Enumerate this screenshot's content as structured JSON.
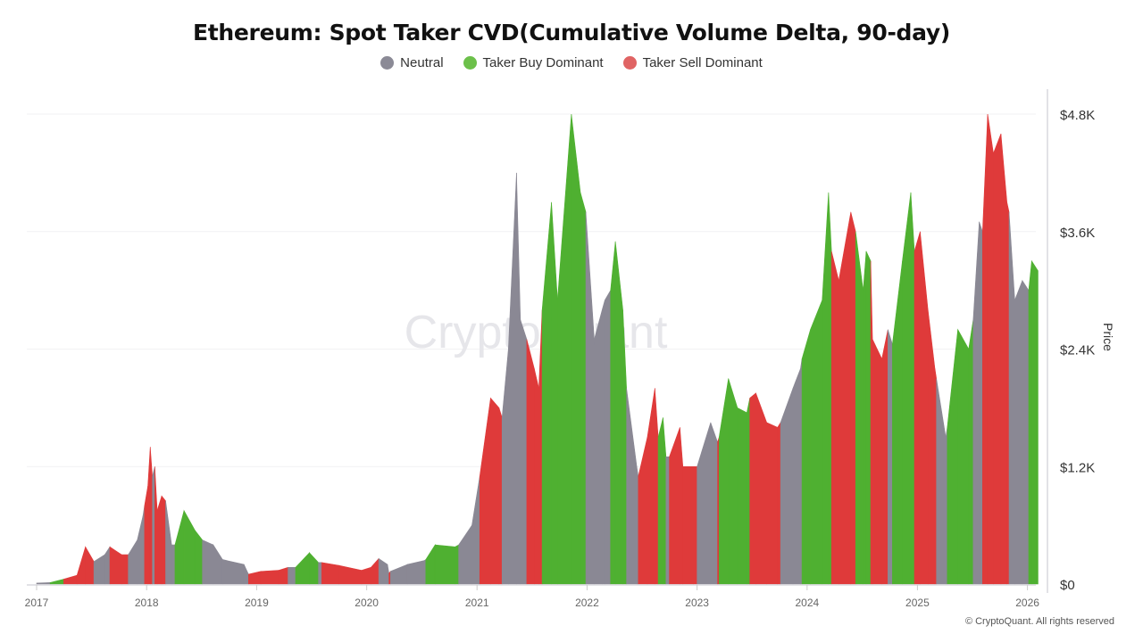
{
  "chart_data": {
    "type": "area",
    "title": "Ethereum: Spot Taker CVD(Cumulative Volume Delta, 90-day)",
    "ylabel": "Price",
    "ylim": [
      0,
      4800
    ],
    "y_ticks": [
      0,
      1200,
      2400,
      3600,
      4800
    ],
    "y_tick_labels": [
      "$0",
      "$1.2K",
      "$2.4K",
      "$3.6K",
      "$4.8K"
    ],
    "x_tick_labels": [
      "2017",
      "2018",
      "2019",
      "2020",
      "2021",
      "2022",
      "2023",
      "2024",
      "2025",
      "2026"
    ],
    "xlim": [
      "2016-11-20",
      "2026-02-10"
    ],
    "grid": true,
    "legend_position": "top",
    "legend": [
      {
        "key": "N",
        "label": "Neutral",
        "color": "#8b8a96"
      },
      {
        "key": "B",
        "label": "Taker Buy Dominant",
        "color": "#6cc04a"
      },
      {
        "key": "S",
        "label": "Taker Sell Dominant",
        "color": "#e06464"
      }
    ],
    "fill_colors": {
      "N": "#8a8894",
      "B": "#4fb031",
      "S": "#df3a3a"
    },
    "points": [
      [
        "2017-01-01",
        10,
        "N"
      ],
      [
        "2017-02-15",
        15,
        "B"
      ],
      [
        "2017-04-01",
        50,
        "S"
      ],
      [
        "2017-05-15",
        90,
        "S"
      ],
      [
        "2017-06-12",
        380,
        "S"
      ],
      [
        "2017-07-10",
        230,
        "N"
      ],
      [
        "2017-08-15",
        300,
        "N"
      ],
      [
        "2017-09-01",
        380,
        "S"
      ],
      [
        "2017-10-10",
        300,
        "S"
      ],
      [
        "2017-11-01",
        300,
        "N"
      ],
      [
        "2017-12-01",
        450,
        "N"
      ],
      [
        "2017-12-20",
        700,
        "N"
      ],
      [
        "2017-12-25",
        800,
        "S"
      ],
      [
        "2018-01-05",
        1000,
        "S"
      ],
      [
        "2018-01-13",
        1400,
        "S"
      ],
      [
        "2018-01-20",
        1100,
        "N"
      ],
      [
        "2018-01-28",
        1200,
        "S"
      ],
      [
        "2018-02-05",
        750,
        "S"
      ],
      [
        "2018-02-20",
        900,
        "S"
      ],
      [
        "2018-03-05",
        850,
        "N"
      ],
      [
        "2018-03-25",
        400,
        "N"
      ],
      [
        "2018-04-05",
        400,
        "B"
      ],
      [
        "2018-05-05",
        750,
        "B"
      ],
      [
        "2018-06-10",
        550,
        "B"
      ],
      [
        "2018-07-05",
        450,
        "N"
      ],
      [
        "2018-08-10",
        400,
        "N"
      ],
      [
        "2018-09-10",
        250,
        "N"
      ],
      [
        "2018-11-20",
        200,
        "N"
      ],
      [
        "2018-12-05",
        100,
        "S"
      ],
      [
        "2019-01-15",
        130,
        "S"
      ],
      [
        "2019-03-15",
        140,
        "S"
      ],
      [
        "2019-04-15",
        170,
        "N"
      ],
      [
        "2019-05-10",
        170,
        "B"
      ],
      [
        "2019-06-25",
        320,
        "B"
      ],
      [
        "2019-07-25",
        220,
        "N"
      ],
      [
        "2019-08-05",
        220,
        "S"
      ],
      [
        "2019-10-01",
        190,
        "S"
      ],
      [
        "2019-12-15",
        140,
        "S"
      ],
      [
        "2020-01-15",
        170,
        "S"
      ],
      [
        "2020-02-10",
        260,
        "N"
      ],
      [
        "2020-03-10",
        200,
        "N"
      ],
      [
        "2020-03-15",
        110,
        "S"
      ],
      [
        "2020-03-20",
        130,
        "N"
      ],
      [
        "2020-05-15",
        200,
        "N"
      ],
      [
        "2020-07-10",
        240,
        "N"
      ],
      [
        "2020-07-15",
        250,
        "B"
      ],
      [
        "2020-08-15",
        400,
        "B"
      ],
      [
        "2020-10-20",
        380,
        "B"
      ],
      [
        "2020-11-01",
        400,
        "N"
      ],
      [
        "2020-12-15",
        600,
        "N"
      ],
      [
        "2021-01-10",
        1100,
        "S"
      ],
      [
        "2021-02-15",
        1900,
        "S"
      ],
      [
        "2021-03-15",
        1800,
        "S"
      ],
      [
        "2021-03-25",
        1700,
        "N"
      ],
      [
        "2021-04-15",
        2400,
        "N"
      ],
      [
        "2021-05-12",
        4200,
        "N"
      ],
      [
        "2021-05-25",
        2700,
        "N"
      ],
      [
        "2021-06-15",
        2500,
        "S"
      ],
      [
        "2021-07-10",
        2200,
        "S"
      ],
      [
        "2021-07-25",
        2000,
        "S"
      ],
      [
        "2021-08-05",
        2800,
        "B"
      ],
      [
        "2021-09-05",
        3900,
        "B"
      ],
      [
        "2021-09-25",
        2900,
        "B"
      ],
      [
        "2021-11-10",
        4800,
        "B"
      ],
      [
        "2021-12-10",
        4000,
        "B"
      ],
      [
        "2021-12-28",
        3800,
        "N"
      ],
      [
        "2022-01-25",
        2500,
        "N"
      ],
      [
        "2022-02-20",
        2800,
        "N"
      ],
      [
        "2022-03-01",
        2900,
        "N"
      ],
      [
        "2022-03-20",
        3000,
        "B"
      ],
      [
        "2022-04-05",
        3500,
        "B"
      ],
      [
        "2022-04-30",
        2800,
        "B"
      ],
      [
        "2022-05-12",
        2000,
        "N"
      ],
      [
        "2022-06-15",
        1200,
        "N"
      ],
      [
        "2022-06-20",
        1100,
        "S"
      ],
      [
        "2022-07-20",
        1500,
        "S"
      ],
      [
        "2022-08-14",
        2000,
        "S"
      ],
      [
        "2022-08-25",
        1500,
        "B"
      ],
      [
        "2022-09-10",
        1700,
        "B"
      ],
      [
        "2022-09-20",
        1300,
        "N"
      ],
      [
        "2022-10-01",
        1300,
        "S"
      ],
      [
        "2022-11-05",
        1600,
        "S"
      ],
      [
        "2022-11-15",
        1200,
        "S"
      ],
      [
        "2022-12-20",
        1200,
        "S"
      ],
      [
        "2023-01-01",
        1200,
        "N"
      ],
      [
        "2023-02-15",
        1650,
        "N"
      ],
      [
        "2023-03-10",
        1450,
        "S"
      ],
      [
        "2023-03-15",
        1500,
        "B"
      ],
      [
        "2023-04-15",
        2100,
        "B"
      ],
      [
        "2023-05-15",
        1800,
        "B"
      ],
      [
        "2023-06-15",
        1750,
        "B"
      ],
      [
        "2023-06-25",
        1900,
        "S"
      ],
      [
        "2023-07-15",
        1950,
        "S"
      ],
      [
        "2023-08-20",
        1650,
        "S"
      ],
      [
        "2023-09-25",
        1600,
        "S"
      ],
      [
        "2023-10-05",
        1650,
        "N"
      ],
      [
        "2023-11-15",
        2000,
        "N"
      ],
      [
        "2023-12-10",
        2200,
        "N"
      ],
      [
        "2023-12-15",
        2300,
        "B"
      ],
      [
        "2024-01-12",
        2600,
        "B"
      ],
      [
        "2024-02-20",
        2900,
        "B"
      ],
      [
        "2024-03-12",
        4000,
        "B"
      ],
      [
        "2024-03-22",
        3400,
        "S"
      ],
      [
        "2024-04-15",
        3100,
        "S"
      ],
      [
        "2024-05-25",
        3800,
        "S"
      ],
      [
        "2024-06-10",
        3600,
        "B"
      ],
      [
        "2024-07-05",
        3000,
        "B"
      ],
      [
        "2024-07-15",
        3400,
        "B"
      ],
      [
        "2024-07-30",
        3300,
        "S"
      ],
      [
        "2024-08-05",
        2500,
        "S"
      ],
      [
        "2024-09-05",
        2300,
        "S"
      ],
      [
        "2024-09-25",
        2600,
        "N"
      ],
      [
        "2024-10-10",
        2450,
        "B"
      ],
      [
        "2024-11-12",
        3300,
        "B"
      ],
      [
        "2024-12-10",
        4000,
        "B"
      ],
      [
        "2024-12-22",
        3400,
        "S"
      ],
      [
        "2025-01-10",
        3600,
        "S"
      ],
      [
        "2025-02-05",
        2800,
        "S"
      ],
      [
        "2025-02-28",
        2200,
        "S"
      ],
      [
        "2025-03-05",
        2100,
        "N"
      ],
      [
        "2025-04-05",
        1500,
        "N"
      ],
      [
        "2025-04-10",
        1600,
        "B"
      ],
      [
        "2025-05-15",
        2600,
        "B"
      ],
      [
        "2025-06-20",
        2400,
        "B"
      ],
      [
        "2025-07-05",
        2700,
        "N"
      ],
      [
        "2025-07-25",
        3700,
        "N"
      ],
      [
        "2025-08-05",
        3600,
        "S"
      ],
      [
        "2025-08-22",
        4800,
        "S"
      ],
      [
        "2025-09-10",
        4400,
        "S"
      ],
      [
        "2025-10-05",
        4600,
        "S"
      ],
      [
        "2025-10-25",
        3900,
        "S"
      ],
      [
        "2025-11-01",
        3800,
        "N"
      ],
      [
        "2025-11-20",
        2900,
        "N"
      ],
      [
        "2025-12-15",
        3100,
        "N"
      ],
      [
        "2026-01-05",
        3000,
        "B"
      ],
      [
        "2026-01-15",
        3300,
        "B"
      ],
      [
        "2026-02-05",
        3200,
        "B"
      ]
    ]
  },
  "watermark": "CryptoQuant",
  "footer": "© CryptoQuant. All rights reserved"
}
